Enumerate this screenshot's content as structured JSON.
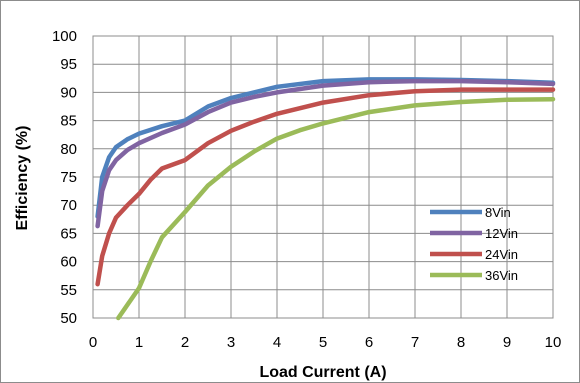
{
  "chart_data": {
    "type": "line",
    "title": "",
    "xlabel": "Load Current (A)",
    "ylabel": "Efficiency (%)",
    "xlim": [
      0,
      10
    ],
    "ylim": [
      50,
      100
    ],
    "xticks": [
      0,
      1,
      2,
      3,
      4,
      5,
      6,
      7,
      8,
      9,
      10
    ],
    "yticks": [
      50,
      55,
      60,
      65,
      70,
      75,
      80,
      85,
      90,
      95,
      100
    ],
    "xtick_labels": [
      "0",
      "1",
      "2",
      "3",
      "4",
      "5",
      "6",
      "7",
      "8",
      "9",
      "10"
    ],
    "ytick_labels": [
      "50",
      "55",
      "60",
      "65",
      "70",
      "75",
      "80",
      "85",
      "90",
      "95",
      "100"
    ],
    "grid": true,
    "legend_position": "bottom-right",
    "series": [
      {
        "name": "8Vin",
        "color": "#4F81BD",
        "points": [
          [
            0.1,
            68
          ],
          [
            0.2,
            75
          ],
          [
            0.35,
            78.5
          ],
          [
            0.5,
            80.3
          ],
          [
            0.75,
            81.7
          ],
          [
            1,
            82.7
          ],
          [
            1.5,
            84
          ],
          [
            2,
            85
          ],
          [
            2.5,
            87.5
          ],
          [
            3,
            89
          ],
          [
            3.5,
            90
          ],
          [
            4,
            91
          ],
          [
            5,
            92
          ],
          [
            6,
            92.3
          ],
          [
            7,
            92.3
          ],
          [
            8,
            92.2
          ],
          [
            9,
            92
          ],
          [
            10,
            91.7
          ]
        ]
      },
      {
        "name": "12Vin",
        "color": "#8064A2",
        "points": [
          [
            0.1,
            66.3
          ],
          [
            0.2,
            72.5
          ],
          [
            0.35,
            76.2
          ],
          [
            0.5,
            78
          ],
          [
            0.75,
            79.8
          ],
          [
            1,
            81
          ],
          [
            1.5,
            82.8
          ],
          [
            2,
            84.3
          ],
          [
            2.5,
            86.5
          ],
          [
            3,
            88.2
          ],
          [
            3.5,
            89.2
          ],
          [
            4,
            90
          ],
          [
            5,
            91.2
          ],
          [
            6,
            91.8
          ],
          [
            7,
            92
          ],
          [
            8,
            92
          ],
          [
            9,
            91.8
          ],
          [
            10,
            91.5
          ]
        ]
      },
      {
        "name": "24Vin",
        "color": "#C0504D",
        "points": [
          [
            0.1,
            56
          ],
          [
            0.2,
            61
          ],
          [
            0.35,
            65
          ],
          [
            0.5,
            67.8
          ],
          [
            0.75,
            70
          ],
          [
            1,
            72
          ],
          [
            1.25,
            74.5
          ],
          [
            1.5,
            76.5
          ],
          [
            2,
            78
          ],
          [
            2.5,
            81
          ],
          [
            3,
            83.2
          ],
          [
            3.5,
            84.8
          ],
          [
            4,
            86.2
          ],
          [
            5,
            88.2
          ],
          [
            6,
            89.5
          ],
          [
            7,
            90.2
          ],
          [
            8,
            90.5
          ],
          [
            9,
            90.5
          ],
          [
            10,
            90.5
          ]
        ]
      },
      {
        "name": "36Vin",
        "color": "#9BBB59",
        "points": [
          [
            0.55,
            50
          ],
          [
            1,
            55.3
          ],
          [
            1.25,
            60
          ],
          [
            1.5,
            64.3
          ],
          [
            2,
            68.8
          ],
          [
            2.5,
            73.5
          ],
          [
            3,
            76.8
          ],
          [
            3.5,
            79.5
          ],
          [
            4,
            81.8
          ],
          [
            4.5,
            83.3
          ],
          [
            5,
            84.5
          ],
          [
            6,
            86.5
          ],
          [
            7,
            87.7
          ],
          [
            8,
            88.3
          ],
          [
            9,
            88.7
          ],
          [
            10,
            88.8
          ]
        ]
      }
    ]
  }
}
